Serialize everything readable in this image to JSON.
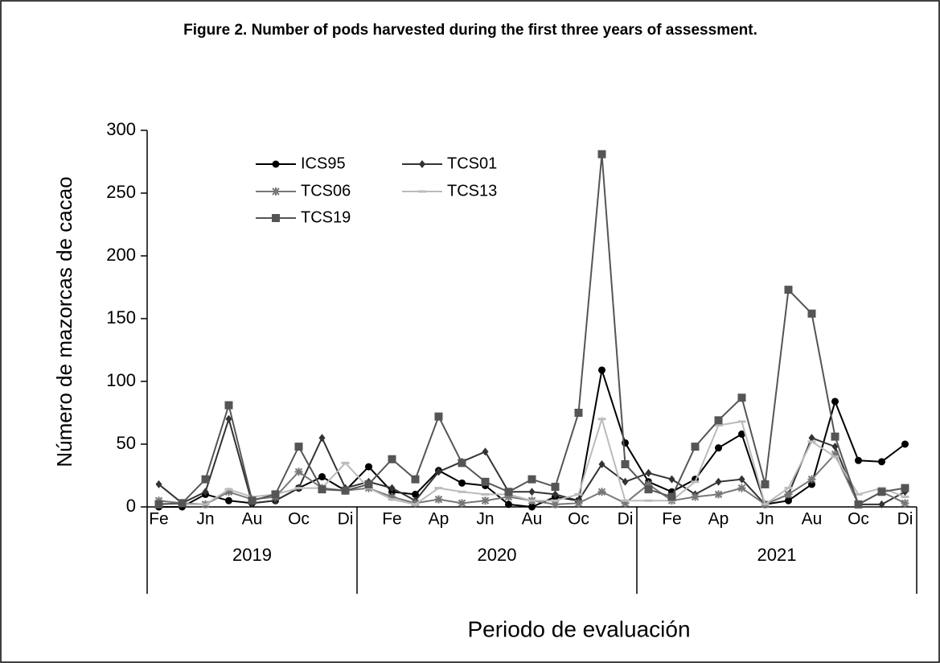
{
  "chart_data": {
    "type": "line",
    "title": "Figure 2. Number of pods harvested during the first three years of assessment.",
    "ylabel": "Número de mazorcas de cacao",
    "xlabel": "Periodo de evaluación",
    "categories": [
      "Fe",
      null,
      "Jn",
      null,
      "Au",
      null,
      "Oc",
      null,
      "Di",
      null,
      "Fe",
      null,
      "Ap",
      null,
      "Jn",
      null,
      "Au",
      null,
      "Oc",
      null,
      "Di",
      null,
      "Fe",
      null,
      "Ap",
      null,
      "Jn",
      null,
      "Au",
      null,
      "Oc",
      null,
      "Di"
    ],
    "groups": [
      {
        "name": "2019",
        "size": 9
      },
      {
        "name": "2020",
        "size": 12
      },
      {
        "name": "2021",
        "size": 12
      }
    ],
    "ylim": [
      0,
      300
    ],
    "yticks": [
      0,
      50,
      100,
      150,
      200,
      250,
      300
    ],
    "series": [
      {
        "name": "ICS95",
        "color": "#000000",
        "marker": "circle",
        "values": [
          0,
          0,
          10,
          5,
          3,
          5,
          15,
          24,
          13,
          32,
          12,
          10,
          29,
          19,
          17,
          2,
          0,
          8,
          5,
          109,
          51,
          20,
          12,
          22,
          47,
          58,
          2,
          5,
          18,
          84,
          37,
          36,
          50
        ]
      },
      {
        "name": "TCS01",
        "color": "#333333",
        "marker": "diamond",
        "values": [
          18,
          3,
          12,
          70,
          3,
          5,
          15,
          55,
          15,
          20,
          15,
          5,
          28,
          36,
          44,
          12,
          12,
          10,
          5,
          34,
          20,
          27,
          22,
          10,
          20,
          22,
          2,
          10,
          55,
          48,
          2,
          2,
          12
        ]
      },
      {
        "name": "TCS06",
        "color": "#777777",
        "marker": "star",
        "values": [
          5,
          3,
          2,
          12,
          6,
          8,
          28,
          15,
          13,
          15,
          8,
          3,
          6,
          3,
          5,
          8,
          5,
          2,
          3,
          12,
          3,
          18,
          5,
          8,
          10,
          15,
          2,
          10,
          22,
          42,
          2,
          12,
          3
        ]
      },
      {
        "name": "TCS13",
        "color": "#bbbbbb",
        "marker": "dash",
        "values": [
          3,
          2,
          2,
          14,
          8,
          10,
          15,
          15,
          35,
          15,
          6,
          2,
          15,
          12,
          10,
          10,
          5,
          5,
          10,
          70,
          5,
          5,
          5,
          20,
          65,
          68,
          2,
          15,
          52,
          40,
          10,
          15,
          8
        ]
      },
      {
        "name": "TCS19",
        "color": "#555555",
        "marker": "square",
        "values": [
          2,
          3,
          22,
          81,
          5,
          10,
          48,
          14,
          13,
          18,
          38,
          22,
          72,
          35,
          20,
          12,
          22,
          16,
          75,
          281,
          34,
          14,
          8,
          48,
          69,
          87,
          18,
          173,
          154,
          56,
          2,
          12,
          15
        ]
      }
    ]
  }
}
